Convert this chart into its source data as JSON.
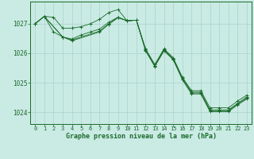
{
  "title": "Graphe pression niveau de la mer (hPa)",
  "bg_color": "#caeae4",
  "grid_color": "#aad4cc",
  "line_color": "#1a6b2a",
  "ylim": [
    1023.6,
    1027.75
  ],
  "xlim": [
    -0.5,
    23.5
  ],
  "yticks": [
    1024,
    1025,
    1026,
    1027
  ],
  "xticks": [
    0,
    1,
    2,
    3,
    4,
    5,
    6,
    7,
    8,
    9,
    10,
    11,
    12,
    13,
    14,
    15,
    16,
    17,
    18,
    19,
    20,
    21,
    22,
    23
  ],
  "series1_x": [
    0,
    1,
    2,
    3,
    4,
    5,
    6,
    7,
    8,
    9,
    10,
    11,
    12,
    13,
    14,
    15,
    16,
    17,
    18,
    19,
    20,
    21,
    22,
    23
  ],
  "series1_y": [
    1027.0,
    1027.25,
    1027.22,
    1026.85,
    1026.85,
    1026.9,
    1027.0,
    1027.15,
    1027.38,
    1027.48,
    1027.1,
    1027.12,
    1026.15,
    1025.62,
    1026.15,
    1025.85,
    1025.18,
    1024.73,
    1024.73,
    1024.15,
    1024.15,
    1024.15,
    1024.38,
    1024.58
  ],
  "series2_x": [
    0,
    1,
    2,
    3,
    4,
    5,
    6,
    7,
    8,
    9,
    10,
    11,
    12,
    13,
    14,
    15,
    16,
    17,
    18,
    19,
    20,
    21,
    22,
    23
  ],
  "series2_y": [
    1027.0,
    1027.25,
    1026.72,
    1026.55,
    1026.48,
    1026.62,
    1026.72,
    1026.82,
    1027.05,
    1027.22,
    1027.1,
    1027.12,
    1026.12,
    1025.58,
    1026.12,
    1025.82,
    1025.15,
    1024.68,
    1024.68,
    1024.08,
    1024.08,
    1024.08,
    1024.3,
    1024.52
  ],
  "series3_x": [
    0,
    1,
    3,
    4,
    7,
    8,
    9,
    10,
    11,
    12,
    13,
    14,
    15,
    16,
    17,
    18,
    19,
    20,
    21,
    22,
    23
  ],
  "series3_y": [
    1027.0,
    1027.25,
    1026.55,
    1026.45,
    1026.75,
    1027.0,
    1027.22,
    1027.1,
    1027.12,
    1026.1,
    1025.57,
    1026.1,
    1025.8,
    1025.12,
    1024.65,
    1024.65,
    1024.05,
    1024.05,
    1024.05,
    1024.28,
    1024.48
  ],
  "series4_x": [
    0,
    1,
    3,
    4,
    7,
    8,
    9,
    10,
    11,
    12,
    13,
    14,
    15,
    16,
    17,
    18,
    19,
    20,
    21,
    22,
    23
  ],
  "series4_y": [
    1027.0,
    1027.25,
    1026.55,
    1026.42,
    1026.72,
    1026.98,
    1027.2,
    1027.1,
    1027.12,
    1026.08,
    1025.55,
    1026.08,
    1025.78,
    1025.1,
    1024.62,
    1024.62,
    1024.02,
    1024.02,
    1024.02,
    1024.25,
    1024.45
  ]
}
